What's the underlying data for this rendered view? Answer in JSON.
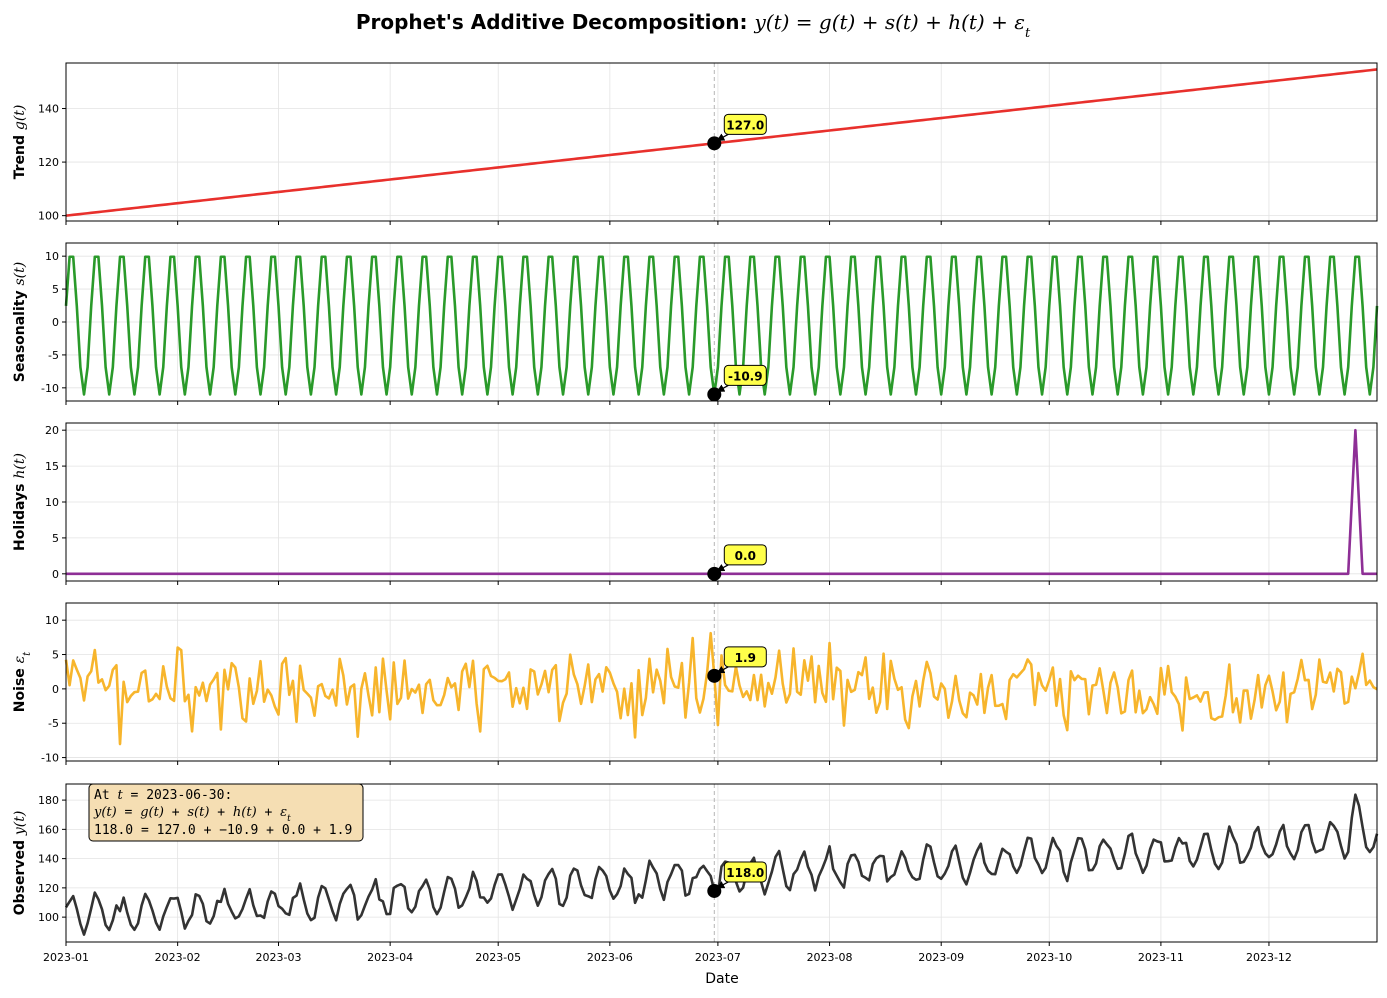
{
  "figure": {
    "title_prefix": "Prophet's Additive Decomposition: ",
    "title_formula": "y(t) = g(t) + s(t) + h(t) + ε",
    "title_formula_sub": "t",
    "xlabel": "Date"
  },
  "chart_data": {
    "type": "line",
    "x_start": "2023-01-01",
    "x_end": "2023-12-31",
    "step_days": 1,
    "marker_date": "2023-06-30",
    "x_tick_labels": [
      "2023-01",
      "2023-02",
      "2023-03",
      "2023-04",
      "2023-05",
      "2023-06",
      "2023-07",
      "2023-08",
      "2023-09",
      "2023-10",
      "2023-11",
      "2023-12"
    ],
    "grid": true,
    "panels": [
      {
        "key": "trend",
        "ylabel_word": "Trend",
        "ylabel_math": "g(t)",
        "ylabel_sub": "",
        "ylim": [
          98,
          157
        ],
        "yticks": [
          100,
          120,
          140
        ],
        "color": "#e8302c",
        "model": {
          "kind": "linear",
          "start": 100,
          "slope_per_day": 0.15
        },
        "callout": "127.0"
      },
      {
        "key": "seasonality",
        "ylabel_word": "Seasonality",
        "ylabel_math": "s(t)",
        "ylabel_sub": "",
        "ylim": [
          -12,
          12
        ],
        "yticks": [
          -10,
          -5,
          0,
          5,
          10
        ],
        "color": "#2a9a2a",
        "model": {
          "kind": "sine",
          "amplitude": 11,
          "period_days": 7
        },
        "callout": "-10.9"
      },
      {
        "key": "holidays",
        "ylabel_word": "Holidays",
        "ylabel_math": "h(t)",
        "ylabel_sub": "",
        "ylim": [
          -1,
          21
        ],
        "yticks": [
          0,
          5,
          10,
          15,
          20
        ],
        "color": "#8e2f96",
        "model": {
          "kind": "spikes",
          "spikes": [
            {
              "date": "2023-12-24",
              "value": 10
            },
            {
              "date": "2023-12-25",
              "value": 20
            },
            {
              "date": "2023-12-26",
              "value": 10
            }
          ]
        },
        "callout": "0.0"
      },
      {
        "key": "noise",
        "ylabel_word": "Noise",
        "ylabel_math": "ε",
        "ylabel_sub": "t",
        "ylim": [
          -10.5,
          12.5
        ],
        "yticks": [
          -10,
          -5,
          0,
          5,
          10
        ],
        "color": "#f7b52c",
        "model": {
          "kind": "random",
          "seed": 42,
          "std": 3,
          "marker_value": 1.9
        },
        "callout": "1.9"
      },
      {
        "key": "observed",
        "ylabel_word": "Observed",
        "ylabel_math": "y(t)",
        "ylabel_sub": "",
        "ylim": [
          83,
          191
        ],
        "yticks": [
          100,
          120,
          140,
          160,
          180
        ],
        "color": "#333333",
        "model": {
          "kind": "sum"
        },
        "callout": "118.0"
      }
    ],
    "infobox": {
      "line1_prefix": "At ",
      "line1_var": "t",
      "line1_rest": " = 2023-06-30:",
      "line2": [
        {
          "t": "y(t)",
          "m": true
        },
        {
          "t": " = ",
          "m": false
        },
        {
          "t": "g(t)",
          "m": true
        },
        {
          "t": " + ",
          "m": false
        },
        {
          "t": "s(t)",
          "m": true
        },
        {
          "t": " + ",
          "m": false
        },
        {
          "t": "h(t)",
          "m": true
        },
        {
          "t": " + ",
          "m": false
        },
        {
          "t": "ε",
          "m": true,
          "sub": "t"
        }
      ],
      "line3": "118.0 = 127.0 + −10.9 + 0.0 + 1.9"
    }
  }
}
